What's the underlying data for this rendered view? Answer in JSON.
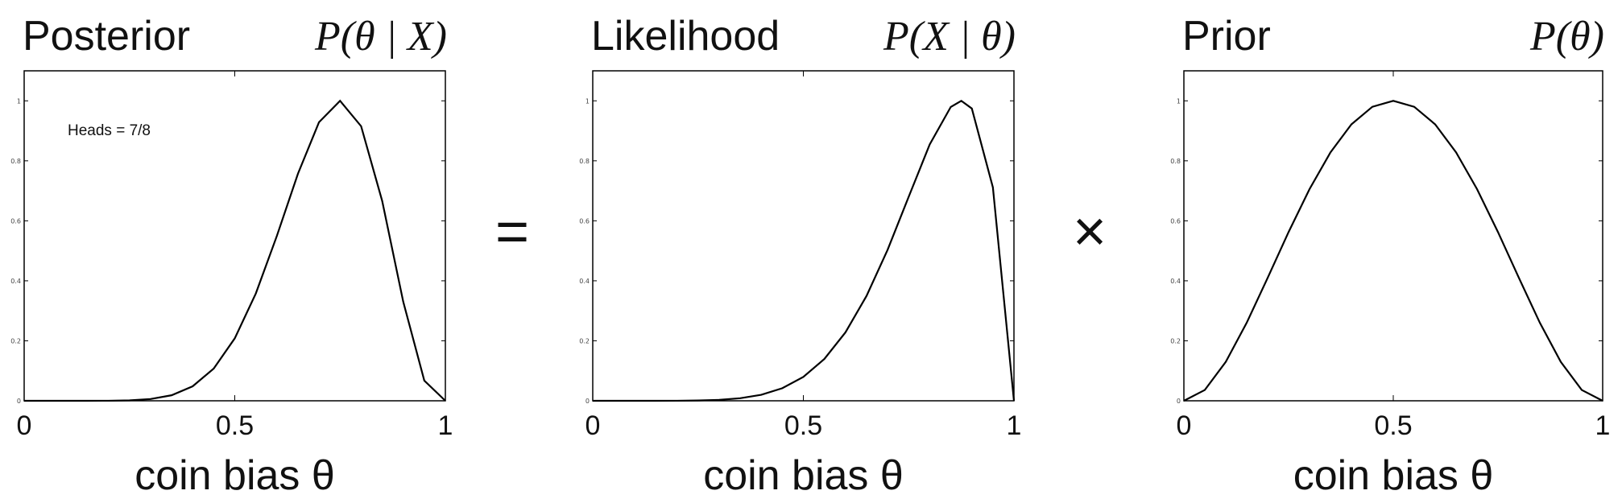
{
  "chart_data": [
    {
      "type": "line",
      "title": "Posterior",
      "formula": "P(θ | X)",
      "xlabel": "coin bias θ",
      "annotation": "Heads = 7/8",
      "color": "#000000",
      "x": [
        0,
        0.05,
        0.1,
        0.15,
        0.2,
        0.25,
        0.3,
        0.35,
        0.4,
        0.45,
        0.5,
        0.55,
        0.6,
        0.65,
        0.7,
        0.75,
        0.8,
        0.85,
        0.9,
        0.95,
        1
      ],
      "values": [
        0,
        0,
        0,
        0,
        0.0002,
        0.0014,
        0.0058,
        0.0184,
        0.0483,
        0.1073,
        0.2081,
        0.3577,
        0.5498,
        0.757,
        0.9287,
        1,
        0.9153,
        0.6663,
        0.3302,
        0.0672,
        0
      ],
      "xlim": [
        0,
        1
      ],
      "ylim": [
        0,
        1.1
      ],
      "xticks": [
        0,
        0.5,
        1
      ],
      "yticks": [
        0,
        0.2,
        0.4,
        0.6,
        0.8,
        1
      ]
    },
    {
      "type": "line",
      "title": "Likelihood",
      "formula": "P(X | θ)",
      "xlabel": "coin bias θ",
      "color": "#000000",
      "x": [
        0,
        0.05,
        0.1,
        0.15,
        0.2,
        0.25,
        0.3,
        0.35,
        0.4,
        0.45,
        0.5,
        0.55,
        0.6,
        0.65,
        0.7,
        0.75,
        0.8,
        0.85,
        0.875,
        0.9,
        0.95,
        1
      ],
      "values": [
        0,
        0,
        0,
        0,
        0.0002,
        0.0009,
        0.0031,
        0.0085,
        0.02,
        0.0419,
        0.0796,
        0.1396,
        0.2281,
        0.3495,
        0.5033,
        0.6798,
        0.8545,
        0.9796,
        1,
        0.9744,
        0.7113,
        0
      ],
      "xlim": [
        0,
        1
      ],
      "ylim": [
        0,
        1.1
      ],
      "xticks": [
        0,
        0.5,
        1
      ],
      "yticks": [
        0,
        0.2,
        0.4,
        0.6,
        0.8,
        1
      ]
    },
    {
      "type": "line",
      "title": "Prior",
      "formula": "P(θ)",
      "xlabel": "coin bias θ",
      "color": "#000000",
      "x": [
        0,
        0.05,
        0.1,
        0.15,
        0.2,
        0.25,
        0.3,
        0.35,
        0.4,
        0.45,
        0.5,
        0.55,
        0.6,
        0.65,
        0.7,
        0.75,
        0.8,
        0.85,
        0.9,
        0.95,
        1
      ],
      "values": [
        0,
        0.0361,
        0.1296,
        0.2601,
        0.4096,
        0.5625,
        0.7056,
        0.8281,
        0.9216,
        0.9801,
        1,
        0.9801,
        0.9216,
        0.8281,
        0.7056,
        0.5625,
        0.4096,
        0.2601,
        0.1296,
        0.0361,
        0
      ],
      "xlim": [
        0,
        1
      ],
      "ylim": [
        0,
        1.1
      ],
      "xticks": [
        0,
        0.5,
        1
      ],
      "yticks": [
        0,
        0.2,
        0.4,
        0.6,
        0.8,
        1
      ]
    }
  ],
  "operators": [
    "=",
    "×"
  ]
}
